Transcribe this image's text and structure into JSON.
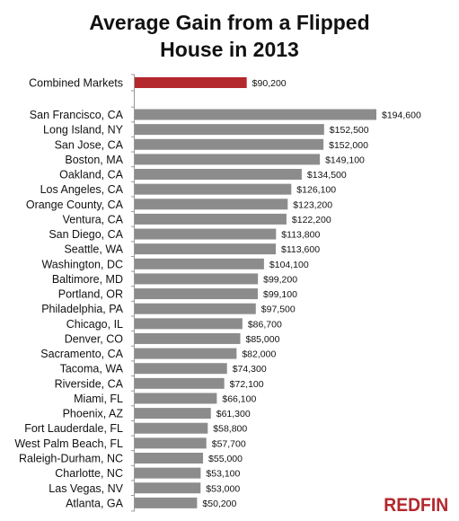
{
  "chart_data": {
    "type": "bar",
    "orientation": "horizontal",
    "title": "Average Gain from a Flipped\nHouse in 2013",
    "xlabel": "",
    "ylabel": "",
    "grid": false,
    "legend": "none",
    "xlim": [
      0,
      194600
    ],
    "categories": [
      "Combined Markets",
      "San Francisco, CA",
      "Long Island, NY",
      "San Jose, CA",
      "Boston, MA",
      "Oakland, CA",
      "Los Angeles, CA",
      "Orange County, CA",
      "Ventura, CA",
      "San Diego, CA",
      "Seattle, WA",
      "Washington, DC",
      "Baltimore, MD",
      "Portland, OR",
      "Philadelphia, PA",
      "Chicago, IL",
      "Denver, CO",
      "Sacramento, CA",
      "Tacoma, WA",
      "Riverside, CA",
      "Miami, FL",
      "Phoenix, AZ",
      "Fort Lauderdale, FL",
      "West Palm Beach, FL",
      "Raleigh-Durham, NC",
      "Charlotte, NC",
      "Las Vegas, NV",
      "Atlanta, GA"
    ],
    "values": [
      90200,
      194600,
      152500,
      152000,
      149100,
      134500,
      126100,
      123200,
      122200,
      113800,
      113600,
      104100,
      99200,
      99100,
      97500,
      86700,
      85000,
      82000,
      74300,
      72100,
      66100,
      61300,
      58800,
      57700,
      55000,
      53100,
      53000,
      50200
    ],
    "value_labels": [
      "$90,200",
      "$194,600",
      "$152,500",
      "$152,000",
      "$149,100",
      "$134,500",
      "$126,100",
      "$123,200",
      "$122,200",
      "$113,800",
      "$113,600",
      "$104,100",
      "$99,200",
      "$99,100",
      "$97,500",
      "$86,700",
      "$85,000",
      "$82,000",
      "$74,300",
      "$72,100",
      "$66,100",
      "$61,300",
      "$58,800",
      "$57,700",
      "$55,000",
      "$53,100",
      "$53,000",
      "$50,200"
    ],
    "colors": {
      "highlight": "#b3282d",
      "bar": "#8c8c8c"
    }
  },
  "branding": {
    "logo_text": "REDFIN",
    "logo_color": "#b3282d"
  }
}
